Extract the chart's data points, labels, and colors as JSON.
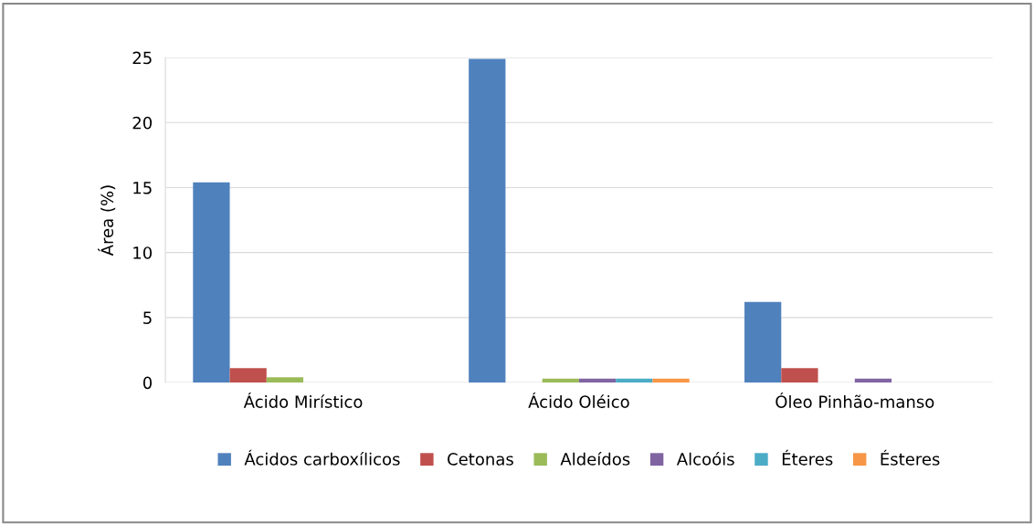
{
  "chart_data": {
    "type": "bar",
    "ylabel": "Área (%)",
    "categories": [
      "Ácido Mirístico",
      "Ácido Oléico",
      "Óleo Pinhão-manso"
    ],
    "series": [
      {
        "name": "Ácidos carboxílicos",
        "color": "#4f81bd",
        "values": [
          15.4,
          24.9,
          6.2
        ]
      },
      {
        "name": "Cetonas",
        "color": "#c0504d",
        "values": [
          1.1,
          0,
          1.1
        ]
      },
      {
        "name": "Aldeídos",
        "color": "#9bbb59",
        "values": [
          0.4,
          0.3,
          0
        ]
      },
      {
        "name": "Alcoóis",
        "color": "#8064a2",
        "values": [
          0,
          0.3,
          0.3
        ]
      },
      {
        "name": "Éteres",
        "color": "#4bacc6",
        "values": [
          0,
          0.3,
          0
        ]
      },
      {
        "name": "Ésteres",
        "color": "#f79646",
        "values": [
          0,
          0.3,
          0
        ]
      }
    ],
    "ylim": [
      0,
      25
    ],
    "yticks": [
      0,
      5,
      10,
      15,
      20,
      25
    ],
    "grid": "y",
    "legend": "bottom"
  }
}
